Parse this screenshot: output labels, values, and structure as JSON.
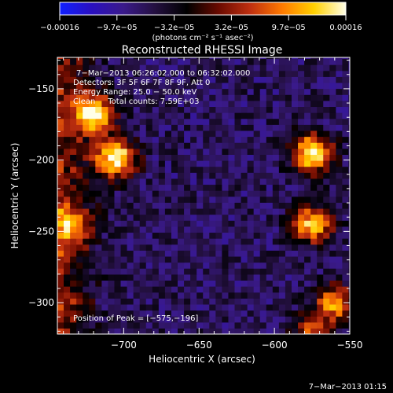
{
  "chart_data": {
    "type": "heatmap",
    "title": "Reconstructed RHESSI Image",
    "xlabel": "Heliocentric X (arcsec)",
    "ylabel": "Heliocentric Y (arcsec)",
    "xlim": [
      -744,
      -550
    ],
    "ylim": [
      -322,
      -128
    ],
    "xticks": [
      -700,
      -650,
      -600,
      -550
    ],
    "xtick_labels": [
      "−700",
      "−650",
      "−600",
      "−550"
    ],
    "yticks": [
      -300,
      -250,
      -200,
      -150
    ],
    "ytick_labels": [
      "−300",
      "−250",
      "−200",
      "−150"
    ],
    "colorbar": {
      "range": [
        -0.00016,
        0.00016
      ],
      "tick_labels": [
        "−0.00016",
        "−9.7e−05",
        "−3.2e−05",
        "3.2e−05",
        "9.7e−05",
        "0.00016"
      ],
      "unit_label": "(photons cm⁻² s⁻¹ asec⁻²)",
      "colors": [
        "#1020ff",
        "#2a10c0",
        "#3a1a8a",
        "#241040",
        "#000000",
        "#6a0a00",
        "#c03010",
        "#ff7a00",
        "#ffd000",
        "#ffffe8"
      ]
    },
    "info_lines": [
      "7−Mar−2013 06:26:02.000 to 06:32:02.000",
      "Detectors: 3F 5F 6F 7F 8F 9F, Att 0",
      "Energy Range: 25.0 − 50.0 keV",
      "Clean     Total counts: 7.59E+03"
    ],
    "peak_label": "Position of Peak = [−575,−196]",
    "peak": [
      -575,
      -196
    ],
    "sources": [
      {
        "x": -720,
        "y": -167,
        "level": 0.95
      },
      {
        "x": -705,
        "y": -198,
        "level": 1.0
      },
      {
        "x": -735,
        "y": -245,
        "level": 0.55
      },
      {
        "x": -575,
        "y": -195,
        "level": 1.0
      },
      {
        "x": -575,
        "y": -245,
        "level": 0.85
      },
      {
        "x": -560,
        "y": -300,
        "level": 0.7
      },
      {
        "x": -575,
        "y": -322,
        "level": 0.55
      }
    ]
  },
  "footer_date": "7−Mar−2013 01:15"
}
